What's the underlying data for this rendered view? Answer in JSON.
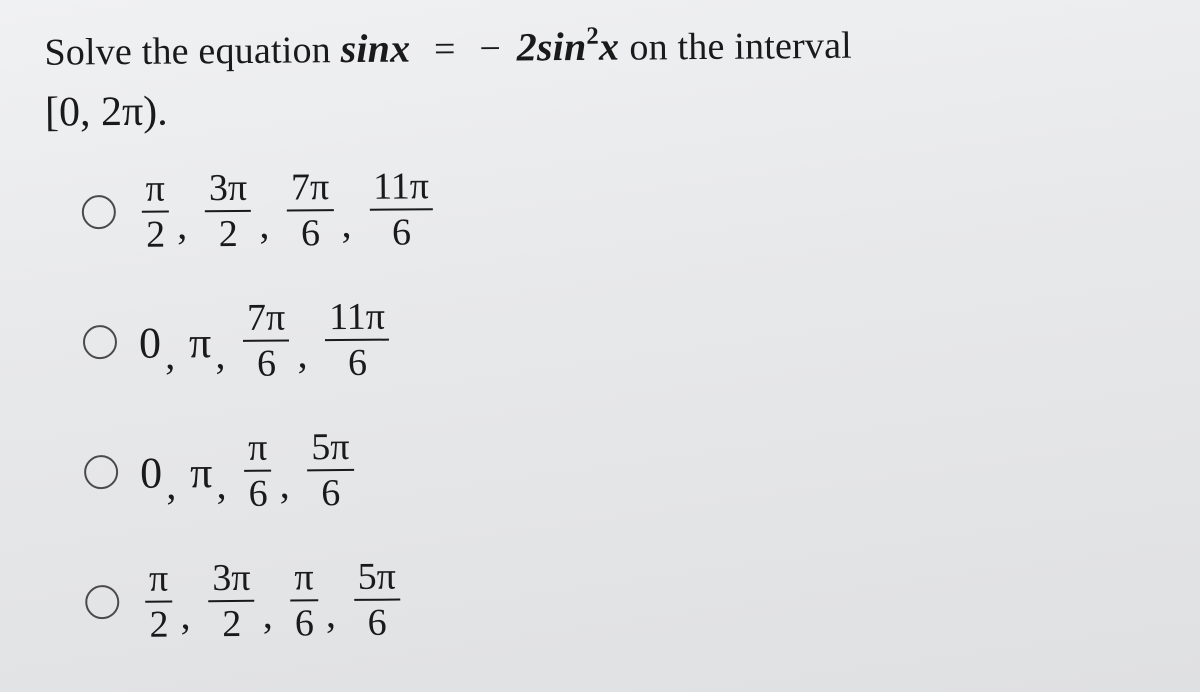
{
  "question": {
    "prefix": "Solve the equation ",
    "lhs": "sinx",
    "eq": " = ",
    "neg": " − ",
    "rhs_coef": "2",
    "rhs_func": "sin",
    "rhs_exp": "2",
    "rhs_var": "x",
    "suffix": " on the interval",
    "interval": "[0, 2π)."
  },
  "options": [
    {
      "terms": [
        {
          "type": "frac",
          "num": "π",
          "den": "2"
        },
        {
          "type": "frac",
          "num": "3π",
          "den": "2"
        },
        {
          "type": "frac",
          "num": "7π",
          "den": "6"
        },
        {
          "type": "frac",
          "num": "11π",
          "den": "6"
        }
      ]
    },
    {
      "terms": [
        {
          "type": "plain",
          "text": "0"
        },
        {
          "type": "plain",
          "text": "π"
        },
        {
          "type": "frac",
          "num": "7π",
          "den": "6"
        },
        {
          "type": "frac",
          "num": "11π",
          "den": "6"
        }
      ]
    },
    {
      "terms": [
        {
          "type": "plain",
          "text": "0"
        },
        {
          "type": "plain",
          "text": "π"
        },
        {
          "type": "frac",
          "num": "π",
          "den": "6"
        },
        {
          "type": "frac",
          "num": "5π",
          "den": "6"
        }
      ]
    },
    {
      "terms": [
        {
          "type": "frac",
          "num": "π",
          "den": "2"
        },
        {
          "type": "frac",
          "num": "3π",
          "den": "2"
        },
        {
          "type": "frac",
          "num": "π",
          "den": "6"
        },
        {
          "type": "frac",
          "num": "5π",
          "den": "6"
        }
      ]
    }
  ],
  "style": {
    "text_color": "#1a1a1a",
    "radio_border": "#4a4a4a",
    "bg_from": "#f0f1f3",
    "bg_to": "#dfe0e2",
    "font_family": "Times New Roman"
  }
}
